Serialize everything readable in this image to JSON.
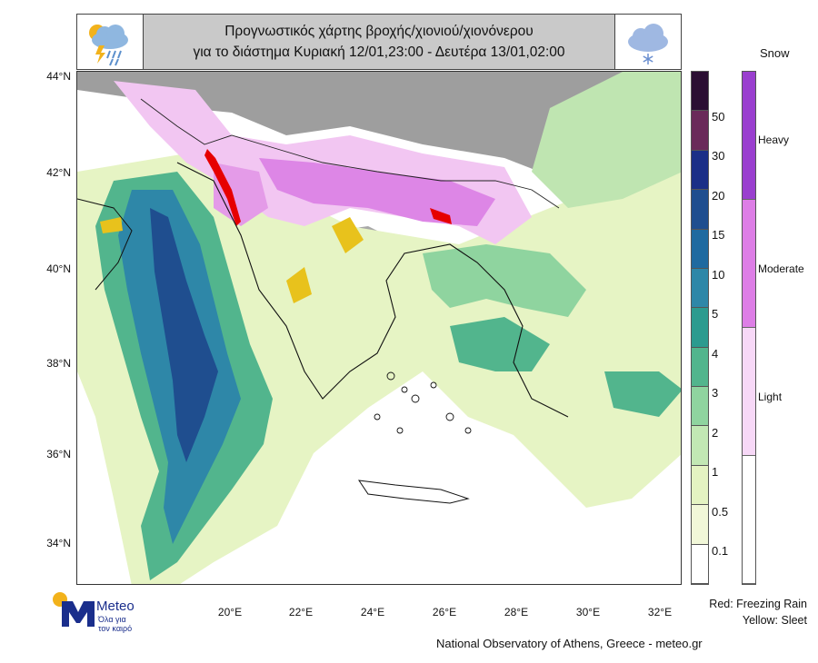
{
  "title": {
    "line1": "Προγνωστικός χάρτης βροχής/χιονιού/χιονόνερου",
    "line2": "για το διάστημα Κυριακή 12/01,23:00 - Δευτέρα 13/01,02:00",
    "left_icon": "rain-thunder-cloud-icon",
    "right_icon": "snow-cloud-icon"
  },
  "map": {
    "lat_labels": [
      "44°N",
      "42°N",
      "40°N",
      "38°N",
      "36°N",
      "34°N"
    ],
    "lon_labels": [
      "20°E",
      "22°E",
      "24°E",
      "26°E",
      "28°E",
      "30°E",
      "32°E"
    ],
    "lat_range": [
      33,
      44
    ],
    "lon_range": [
      18,
      32.5
    ]
  },
  "precip_scale": {
    "labels": [
      "50",
      "30",
      "20",
      "15",
      "10",
      "5",
      "4",
      "3",
      "2",
      "1",
      "0.5",
      "0.1"
    ],
    "colors": [
      "#2b0f33",
      "#6a2a5a",
      "#1b2f87",
      "#1f4e8f",
      "#1f6aa0",
      "#2e87a8",
      "#2c9b8f",
      "#52b58d",
      "#8fd49f",
      "#c2e8b4",
      "#e4f3c2",
      "#f1f7d8",
      "#ffffff"
    ]
  },
  "snow_scale": {
    "header": "Snow",
    "labels": [
      "Heavy",
      "Moderate",
      "Light"
    ],
    "colors": [
      "#9a3fcf",
      "#dd7ee6",
      "#f7d8f7",
      "#ffffff"
    ]
  },
  "notes": {
    "freezing_rain": "Red: Freezing Rain",
    "sleet": "Yellow: Sleet"
  },
  "credit": "National Observatory of Athens, Greece - meteo.gr",
  "logo": {
    "name": "Meteo",
    "tagline1": "Όλα για",
    "tagline2": "τον καιρό"
  }
}
